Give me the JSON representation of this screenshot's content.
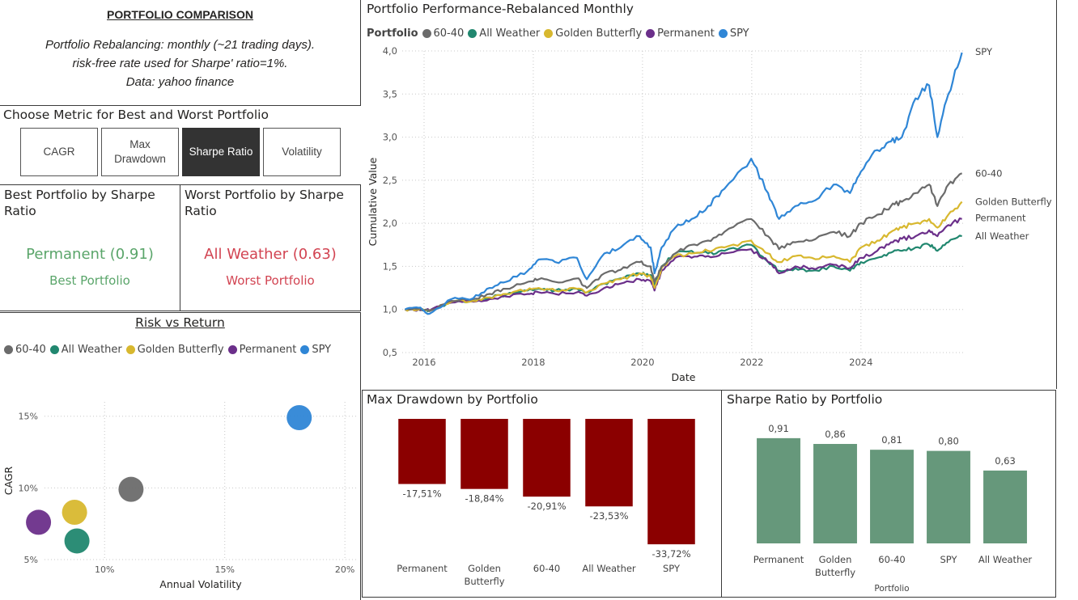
{
  "intro": {
    "title": "PORTFOLIO COMPARISON",
    "lines": [
      "Portfolio Rebalancing: monthly (~21 trading days).",
      "risk-free rate  used for Sharpe' ratio=1%.",
      "Data: yahoo finance"
    ]
  },
  "metric_selector": {
    "title": "Choose Metric for Best and Worst Portfolio",
    "options": [
      {
        "label": "CAGR",
        "active": false
      },
      {
        "label": "Max Drawdown",
        "active": false
      },
      {
        "label": "Sharpe Ratio",
        "active": true
      },
      {
        "label": "Volatility",
        "active": false
      }
    ]
  },
  "best_card": {
    "title": "Best Portfolio by Sharpe Ratio",
    "value": "Permanent (0.91)",
    "subtitle": "Best Portfolio"
  },
  "worst_card": {
    "title": "Worst Portfolio by Sharpe Ratio",
    "value": "All Weather (0.63)",
    "subtitle": "Worst Portfolio"
  },
  "colors": {
    "60-40": "#6b6b6b",
    "All Weather": "#21876f",
    "Golden Butterfly": "#d8b82f",
    "Permanent": "#6b2f8a",
    "SPY": "#2f86d6",
    "drawdown_bar": "#8b0000",
    "sharpe_bar": "#66987b",
    "kpi_good": "#5aa56a",
    "kpi_bad": "#d24452"
  },
  "chart_data": [
    {
      "type": "line",
      "title": "Portfolio Performance-Rebalanced Monthly",
      "legend_title": "Portfolio",
      "xlabel": "Date",
      "ylabel": "Cumulative Value",
      "xlim": [
        2015.6,
        2025.9
      ],
      "ylim": [
        0.5,
        4.0
      ],
      "x_ticks": [
        "2016",
        "2018",
        "2020",
        "2022",
        "2024"
      ],
      "x_tick_values": [
        2016,
        2018,
        2020,
        2022,
        2024
      ],
      "y_ticks": [
        "0,5",
        "1,0",
        "1,5",
        "2,0",
        "2,5",
        "3,0",
        "3,5",
        "4,0"
      ],
      "y_tick_values": [
        0.5,
        1.0,
        1.5,
        2.0,
        2.5,
        3.0,
        3.5,
        4.0
      ],
      "grid": true,
      "legend": "top-left",
      "end_labels": [
        "SPY",
        "60-40",
        "Golden Butterfly",
        "Permanent",
        "All Weather"
      ],
      "x": [
        2015.65,
        2015.9,
        2016.1,
        2016.5,
        2016.9,
        2017.2,
        2017.5,
        2017.9,
        2018.1,
        2018.4,
        2018.8,
        2018.98,
        2019.3,
        2019.6,
        2019.95,
        2020.15,
        2020.22,
        2020.35,
        2020.6,
        2020.9,
        2021.2,
        2021.5,
        2021.99,
        2022.3,
        2022.5,
        2022.8,
        2023.1,
        2023.5,
        2023.8,
        2024.0,
        2024.3,
        2024.55,
        2024.75,
        2025.0,
        2025.25,
        2025.4,
        2025.6,
        2025.85
      ],
      "series": [
        {
          "name": "SPY",
          "values": [
            1.0,
            1.02,
            0.95,
            1.12,
            1.13,
            1.25,
            1.32,
            1.45,
            1.58,
            1.55,
            1.6,
            1.35,
            1.65,
            1.72,
            1.85,
            1.72,
            1.42,
            1.72,
            1.95,
            2.05,
            2.2,
            2.4,
            2.75,
            2.35,
            2.05,
            2.2,
            2.25,
            2.45,
            2.35,
            2.6,
            2.85,
            2.95,
            3.0,
            3.45,
            3.6,
            3.0,
            3.5,
            3.98
          ]
        },
        {
          "name": "60-40",
          "values": [
            1.0,
            1.01,
            0.98,
            1.1,
            1.12,
            1.18,
            1.24,
            1.32,
            1.35,
            1.32,
            1.36,
            1.25,
            1.42,
            1.46,
            1.55,
            1.5,
            1.32,
            1.5,
            1.65,
            1.75,
            1.8,
            1.9,
            2.05,
            1.85,
            1.7,
            1.78,
            1.8,
            1.9,
            1.85,
            2.0,
            2.1,
            2.2,
            2.25,
            2.35,
            2.45,
            2.2,
            2.45,
            2.58
          ]
        },
        {
          "name": "Golden Butterfly",
          "values": [
            1.0,
            1.0,
            0.99,
            1.09,
            1.1,
            1.14,
            1.18,
            1.23,
            1.25,
            1.22,
            1.24,
            1.2,
            1.3,
            1.35,
            1.42,
            1.38,
            1.25,
            1.48,
            1.62,
            1.65,
            1.68,
            1.72,
            1.8,
            1.65,
            1.55,
            1.62,
            1.6,
            1.62,
            1.55,
            1.72,
            1.8,
            1.9,
            1.95,
            2.0,
            2.05,
            1.95,
            2.1,
            2.25
          ]
        },
        {
          "name": "Permanent",
          "values": [
            1.0,
            1.0,
            0.99,
            1.08,
            1.09,
            1.12,
            1.15,
            1.18,
            1.2,
            1.18,
            1.2,
            1.16,
            1.25,
            1.3,
            1.35,
            1.33,
            1.22,
            1.45,
            1.6,
            1.6,
            1.62,
            1.65,
            1.7,
            1.55,
            1.42,
            1.5,
            1.48,
            1.52,
            1.48,
            1.6,
            1.68,
            1.78,
            1.82,
            1.85,
            1.92,
            1.85,
            1.98,
            2.05
          ]
        },
        {
          "name": "All Weather",
          "values": [
            1.0,
            1.0,
            0.99,
            1.08,
            1.1,
            1.14,
            1.17,
            1.22,
            1.24,
            1.22,
            1.24,
            1.2,
            1.3,
            1.36,
            1.42,
            1.4,
            1.28,
            1.5,
            1.65,
            1.68,
            1.65,
            1.68,
            1.75,
            1.55,
            1.45,
            1.48,
            1.45,
            1.5,
            1.45,
            1.55,
            1.6,
            1.66,
            1.68,
            1.72,
            1.75,
            1.68,
            1.78,
            1.85
          ]
        }
      ]
    },
    {
      "type": "scatter",
      "title": "Risk vs Return",
      "xlabel": "Annual Volatility",
      "ylabel": "CAGR",
      "xlim": [
        0.075,
        0.205
      ],
      "ylim": [
        0.05,
        0.16
      ],
      "x_ticks": [
        "10%",
        "15%",
        "20%"
      ],
      "x_tick_values": [
        0.1,
        0.15,
        0.2
      ],
      "y_ticks": [
        "5%",
        "10%",
        "15%"
      ],
      "y_tick_values": [
        0.05,
        0.1,
        0.15
      ],
      "grid": true,
      "legend": "top-left",
      "points": [
        {
          "name": "60-40",
          "x": 0.111,
          "y": 0.099
        },
        {
          "name": "All Weather",
          "x": 0.0885,
          "y": 0.063
        },
        {
          "name": "Golden Butterfly",
          "x": 0.0875,
          "y": 0.083
        },
        {
          "name": "Permanent",
          "x": 0.0725,
          "y": 0.076
        },
        {
          "name": "SPY",
          "x": 0.181,
          "y": 0.149
        }
      ]
    },
    {
      "type": "bar",
      "title": "Max Drawdown by Portfolio",
      "categories": [
        "Permanent",
        "Golden Butterfly",
        "60-40",
        "All Weather",
        "SPY"
      ],
      "values": [
        -17.51,
        -18.84,
        -20.91,
        -23.53,
        -33.72
      ],
      "labels": [
        "-17,51%",
        "-18,84%",
        "-20,91%",
        "-23,53%",
        "-33,72%"
      ],
      "ylim": [
        -35,
        0
      ]
    },
    {
      "type": "bar",
      "title": "Sharpe Ratio by Portfolio",
      "xlabel": "Portfolio",
      "categories": [
        "Permanent",
        "Golden Butterfly",
        "60-40",
        "SPY",
        "All Weather"
      ],
      "values": [
        0.91,
        0.86,
        0.81,
        0.8,
        0.63
      ],
      "labels": [
        "0,91",
        "0,86",
        "0,81",
        "0,80",
        "0,63"
      ],
      "ylim": [
        0,
        1.0
      ]
    }
  ]
}
